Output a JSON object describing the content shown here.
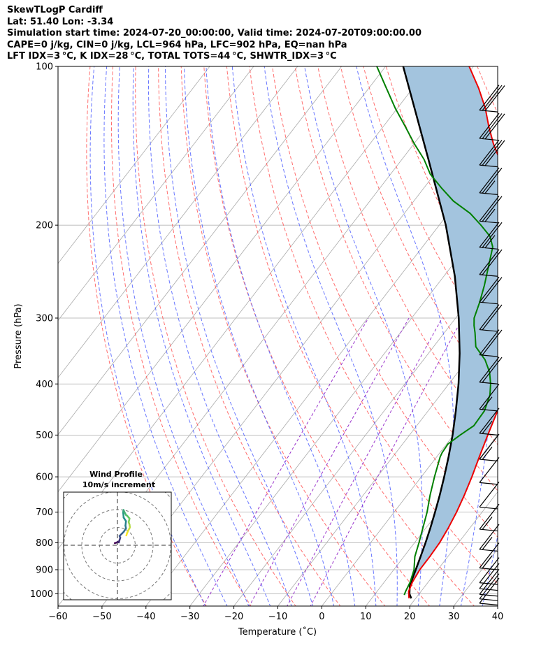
{
  "header": {
    "line1": "SkewTLogP Cardiff",
    "line2": "Lat: 51.40   Lon: -3.34",
    "line3": "Simulation start time: 2024-07-20_00:00:00, Valid time: 2024-07-20T09:00:00.00",
    "line4": "CAPE=0 j/kg, CIN=0 j/kg, LCL=964 hPa, LFC=902 hPa, EQ=nan hPa",
    "line5": "LFT IDX=3 °C, K IDX=28 °C, TOTAL TOTS=44 °C, SHWTR_IDX=3 °C"
  },
  "colors": {
    "temperature": "#ee0000",
    "dewpoint": "#008000",
    "parcel": "#000000",
    "cape_fill": "#a3c4de",
    "dry_adiabat": "#ff5555",
    "moist_adiabat": "#4f5fff",
    "mixing_ratio": "#9933cc",
    "isotherm": "#aaaaaa"
  },
  "chart_data": {
    "type": "line",
    "subtype": "skew-T log-P",
    "xlabel": "Temperature (˚C)",
    "ylabel": "Pressure (hPa)",
    "xlim": [
      -60,
      40
    ],
    "ylim": [
      1050,
      100
    ],
    "yscale": "log",
    "x_ticks": [
      "−60",
      "−50",
      "−40",
      "−30",
      "−20",
      "−10",
      "0",
      "10",
      "20",
      "30",
      "40"
    ],
    "x_tick_values": [
      -60,
      -50,
      -40,
      -30,
      -20,
      -10,
      0,
      10,
      20,
      30,
      40
    ],
    "y_ticks": [
      "100",
      "200",
      "300",
      "400",
      "500",
      "600",
      "700",
      "800",
      "900",
      "1000"
    ],
    "y_tick_values": [
      100,
      200,
      300,
      400,
      500,
      600,
      700,
      800,
      900,
      1000
    ],
    "grid": true,
    "series": [
      {
        "role": "temperature",
        "points": [
          [
            1020,
            18.5
          ],
          [
            990,
            17.2
          ],
          [
            950,
            16.4
          ],
          [
            900,
            15.9
          ],
          [
            850,
            15.9
          ],
          [
            800,
            15.7
          ],
          [
            750,
            15.1
          ],
          [
            700,
            14.2
          ],
          [
            650,
            13.0
          ],
          [
            600,
            11.5
          ],
          [
            550,
            9.7
          ],
          [
            500,
            7.8
          ],
          [
            450,
            5.8
          ],
          [
            420,
            4.9
          ],
          [
            400,
            3.8
          ],
          [
            380,
            2.1
          ],
          [
            350,
            -1.2
          ],
          [
            320,
            -5.0
          ],
          [
            300,
            -7.9
          ],
          [
            270,
            -12.5
          ],
          [
            250,
            -15.5
          ],
          [
            230,
            -18.5
          ],
          [
            210,
            -21.2
          ],
          [
            200,
            -23.0
          ],
          [
            190,
            -25.7
          ],
          [
            180,
            -28.7
          ],
          [
            170,
            -31.5
          ],
          [
            160,
            -34.5
          ],
          [
            150,
            -37.8
          ],
          [
            140,
            -42.0
          ],
          [
            130,
            -46.0
          ],
          [
            120,
            -50.0
          ],
          [
            110,
            -55.0
          ],
          [
            100,
            -61.0
          ]
        ]
      },
      {
        "role": "dewpoint",
        "points": [
          [
            1005,
            16.8
          ],
          [
            990,
            16.5
          ],
          [
            950,
            15.9
          ],
          [
            900,
            14.6
          ],
          [
            850,
            12.5
          ],
          [
            800,
            11.0
          ],
          [
            750,
            9.3
          ],
          [
            700,
            7.5
          ],
          [
            650,
            5.2
          ],
          [
            600,
            3.0
          ],
          [
            550,
            0.8
          ],
          [
            540,
            0.5
          ],
          [
            520,
            0.3
          ],
          [
            500,
            1.5
          ],
          [
            480,
            3.0
          ],
          [
            450,
            2.8
          ],
          [
            420,
            1.3
          ],
          [
            400,
            -0.5
          ],
          [
            380,
            -2.8
          ],
          [
            360,
            -6.0
          ],
          [
            340,
            -10.4
          ],
          [
            320,
            -13.0
          ],
          [
            310,
            -14.5
          ],
          [
            300,
            -15.8
          ],
          [
            280,
            -17.3
          ],
          [
            260,
            -19.2
          ],
          [
            240,
            -21.5
          ],
          [
            220,
            -24.0
          ],
          [
            210,
            -26.5
          ],
          [
            200,
            -30.5
          ],
          [
            190,
            -35.0
          ],
          [
            180,
            -41.0
          ],
          [
            170,
            -46.0
          ],
          [
            160,
            -51.0
          ],
          [
            150,
            -55.0
          ],
          [
            140,
            -60.0
          ],
          [
            130,
            -65.0
          ],
          [
            120,
            -70.5
          ],
          [
            110,
            -76.0
          ],
          [
            100,
            -82.0
          ]
        ]
      },
      {
        "role": "parcel",
        "points": [
          [
            1020,
            19.0
          ],
          [
            1000,
            17.8
          ],
          [
            964,
            16.4
          ],
          [
            900,
            15.0
          ],
          [
            850,
            13.8
          ],
          [
            800,
            12.5
          ],
          [
            750,
            11.0
          ],
          [
            700,
            9.3
          ],
          [
            650,
            7.4
          ],
          [
            600,
            5.2
          ],
          [
            550,
            2.7
          ],
          [
            500,
            -0.2
          ],
          [
            450,
            -3.7
          ],
          [
            400,
            -7.8
          ],
          [
            350,
            -12.9
          ],
          [
            300,
            -19.3
          ],
          [
            250,
            -27.5
          ],
          [
            200,
            -38.5
          ],
          [
            150,
            -54.0
          ],
          [
            100,
            -76.0
          ]
        ]
      }
    ],
    "cape_cin_fill": "between temperature and parcel",
    "wind_barbs": {
      "pressures": [
        1050,
        1030,
        1010,
        985,
        960,
        900,
        830,
        760,
        690,
        620,
        560,
        500,
        450,
        400,
        355,
        318,
        282,
        250,
        222,
        198,
        175,
        155,
        138,
        122
      ],
      "speed_kt": [
        10,
        10,
        10,
        10,
        10,
        15,
        15,
        15,
        10,
        10,
        15,
        15,
        15,
        20,
        20,
        20,
        20,
        20,
        25,
        25,
        25,
        30,
        30,
        30
      ]
    },
    "hodograph": {
      "title": "Wind Profile",
      "subtitle": "10m/s increment",
      "points": [
        [
          -1.5,
          1.2
        ],
        [
          -0.5,
          1.5
        ],
        [
          0.3,
          2.0
        ],
        [
          0.8,
          1.6
        ],
        [
          1.2,
          3.0
        ],
        [
          1.6,
          4.2
        ],
        [
          1.2,
          5.2
        ],
        [
          2.5,
          6.5
        ],
        [
          3.5,
          7.5
        ],
        [
          4.8,
          9.5
        ],
        [
          4.5,
          11.0
        ],
        [
          4.8,
          13.5
        ],
        [
          3.5,
          15.5
        ],
        [
          3.2,
          18.5
        ],
        [
          3.4,
          19.8
        ],
        [
          4.0,
          18.5
        ],
        [
          4.8,
          17.0
        ],
        [
          5.5,
          16.5
        ],
        [
          6.8,
          15.0
        ],
        [
          6.3,
          13.0
        ],
        [
          6.8,
          11.5
        ],
        [
          7.0,
          10.0
        ],
        [
          6.2,
          8.5
        ],
        [
          5.4,
          6.8
        ],
        [
          5.0,
          5.5
        ]
      ]
    }
  }
}
